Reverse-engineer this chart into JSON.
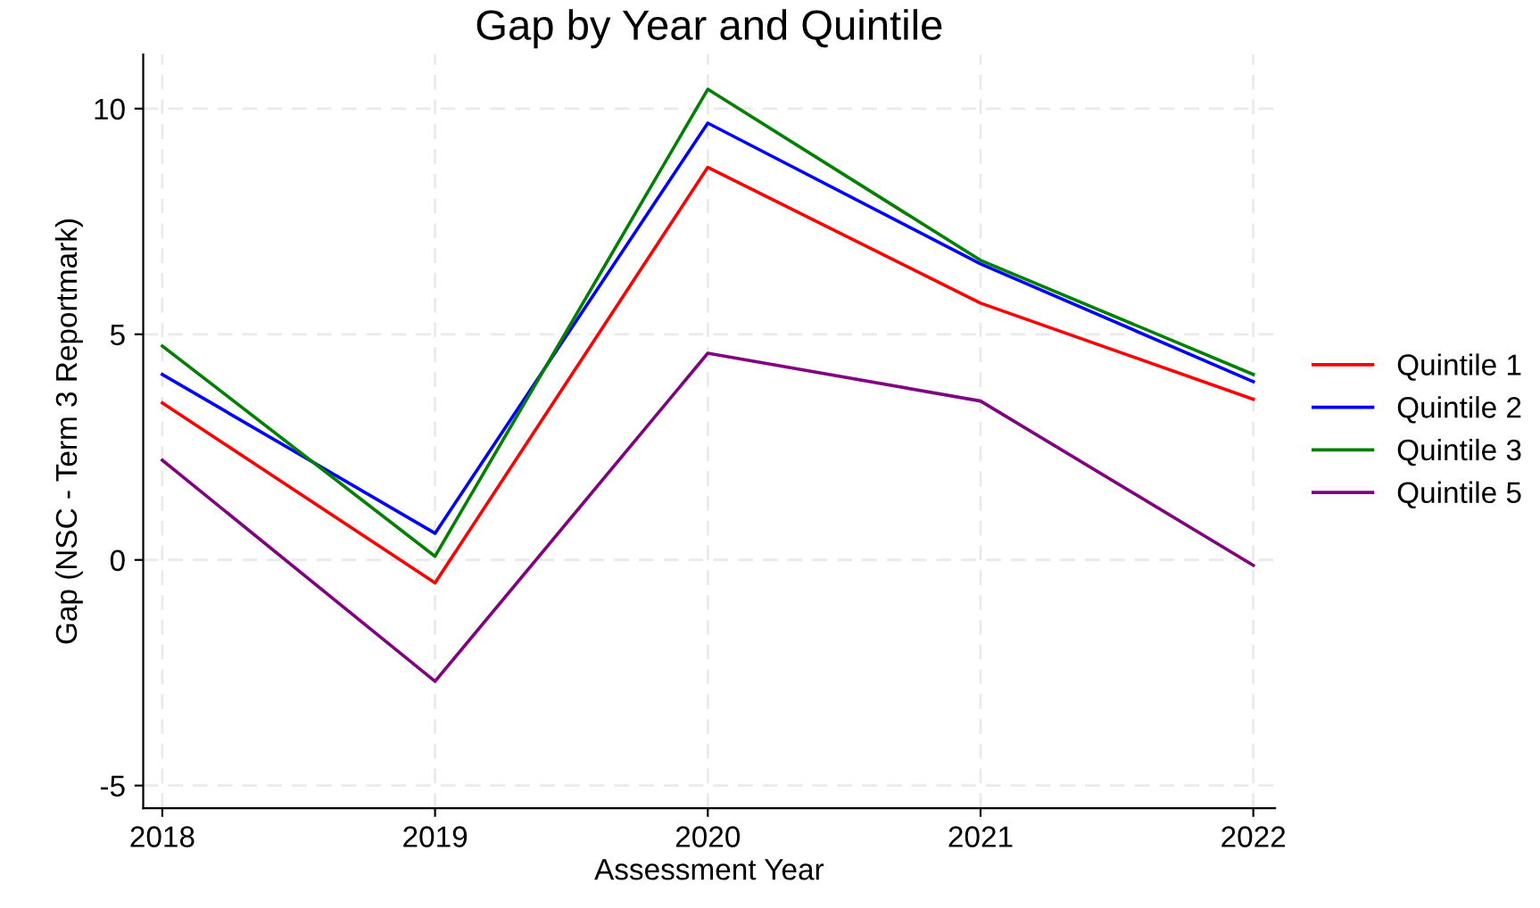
{
  "chart_data": {
    "type": "line",
    "title": "Gap by Year and Quintile",
    "xlabel": "Assessment Year",
    "ylabel": "Gap (NSC - Term 3 Reportmark)",
    "x": [
      2018,
      2019,
      2020,
      2021,
      2022
    ],
    "series": [
      {
        "name": "Quintile 1",
        "color": "#ff0000",
        "values": [
          3.48,
          -0.51,
          8.7,
          5.69,
          3.56
        ]
      },
      {
        "name": "Quintile 2",
        "color": "#0000ff",
        "values": [
          4.11,
          0.59,
          9.68,
          6.56,
          3.95
        ]
      },
      {
        "name": "Quintile 3",
        "color": "#008000",
        "values": [
          4.74,
          0.08,
          10.43,
          6.64,
          4.11
        ]
      },
      {
        "name": "Quintile 5",
        "color": "#800080",
        "values": [
          2.21,
          -2.69,
          4.58,
          3.52,
          -0.12
        ]
      }
    ],
    "xlim": [
      2017.93,
      2022.08
    ],
    "xticks": [
      2018,
      2019,
      2020,
      2021,
      2022
    ],
    "ylim": [
      -5.5,
      11.2
    ],
    "yticks": [
      -5,
      0,
      5,
      10
    ],
    "grid": true,
    "legend": "right",
    "marker": "none",
    "line_style": "solid"
  }
}
